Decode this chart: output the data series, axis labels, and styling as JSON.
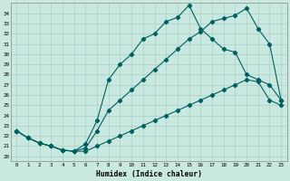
{
  "xlabel": "Humidex (Indice chaleur)",
  "bg_color": "#c8e8e0",
  "grid_color": "#aad0c8",
  "line_color": "#006060",
  "xlim": [
    -0.5,
    23.5
  ],
  "ylim": [
    19.5,
    35.0
  ],
  "xticks": [
    0,
    1,
    2,
    3,
    4,
    5,
    6,
    7,
    8,
    9,
    10,
    11,
    12,
    13,
    14,
    15,
    16,
    17,
    18,
    19,
    20,
    21,
    22,
    23
  ],
  "yticks": [
    20,
    21,
    22,
    23,
    24,
    25,
    26,
    27,
    28,
    29,
    30,
    31,
    32,
    33,
    34
  ],
  "curve_upper_x": [
    0,
    1,
    2,
    3,
    4,
    5,
    6,
    7,
    8,
    9,
    10,
    11,
    12,
    13,
    14,
    15,
    16,
    17,
    18,
    19,
    20,
    21,
    22,
    23
  ],
  "curve_upper_y": [
    22.5,
    21.8,
    21.3,
    21.0,
    20.6,
    20.5,
    21.2,
    23.5,
    27.5,
    29.0,
    30.0,
    31.5,
    32.0,
    33.2,
    33.6,
    34.8,
    32.5,
    31.5,
    30.5,
    30.2,
    28.0,
    27.5,
    27.0,
    25.5
  ],
  "curve_mid_x": [
    0,
    1,
    2,
    3,
    4,
    5,
    6,
    7,
    8,
    9,
    10,
    11,
    12,
    13,
    14,
    15,
    16,
    17,
    18,
    19,
    20,
    21,
    22,
    23
  ],
  "curve_mid_y": [
    22.5,
    21.8,
    21.3,
    21.0,
    20.6,
    20.5,
    20.8,
    22.5,
    24.5,
    25.5,
    26.5,
    27.5,
    28.5,
    29.5,
    30.5,
    31.5,
    32.2,
    33.2,
    33.5,
    33.8,
    34.5,
    32.5,
    31.0,
    25.5
  ],
  "curve_low_x": [
    0,
    1,
    2,
    3,
    4,
    5,
    6,
    7,
    8,
    9,
    10,
    11,
    12,
    13,
    14,
    15,
    16,
    17,
    18,
    19,
    20,
    21,
    22,
    23
  ],
  "curve_low_y": [
    22.5,
    21.8,
    21.3,
    21.0,
    20.6,
    20.5,
    20.5,
    21.0,
    21.5,
    22.0,
    22.5,
    23.0,
    23.5,
    24.0,
    24.5,
    25.0,
    25.5,
    26.0,
    26.5,
    27.0,
    27.5,
    27.3,
    25.5,
    25.0
  ]
}
